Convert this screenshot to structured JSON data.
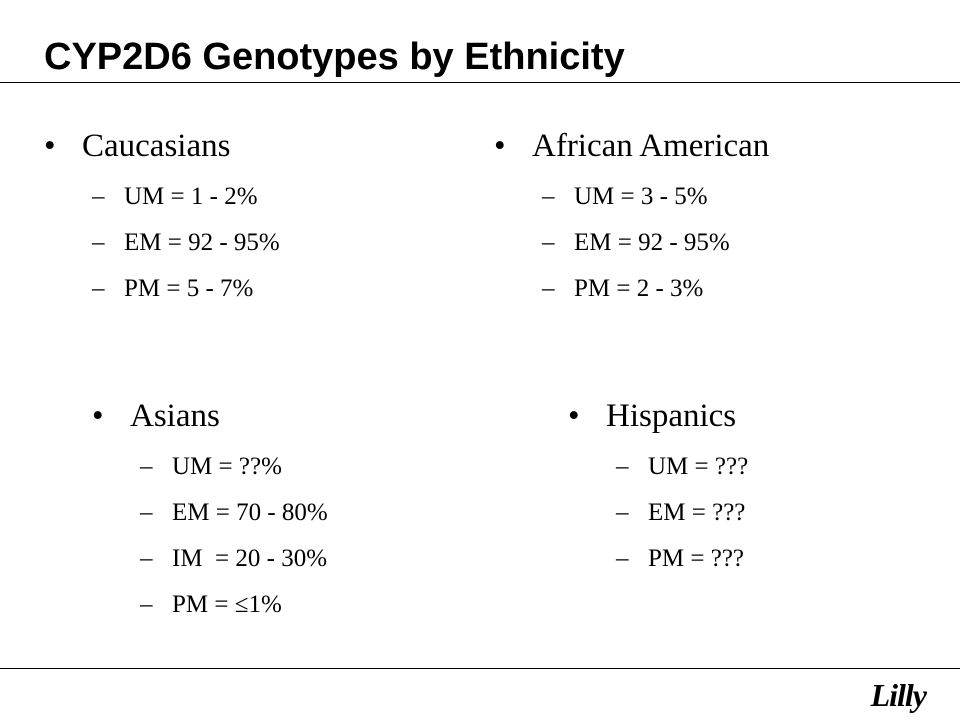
{
  "title": "CYP2D6 Genotypes by Ethnicity",
  "groups": [
    {
      "heading": "Caucasians",
      "items": [
        "UM = 1 - 2%",
        "EM = 92 - 95%",
        "PM = 5 - 7%"
      ]
    },
    {
      "heading": "African American",
      "items": [
        "UM = 3 - 5%",
        "EM = 92 - 95%",
        "PM = 2 - 3%"
      ]
    },
    {
      "heading": "Asians",
      "items": [
        "UM = ??%",
        "EM = 70 - 80%",
        "IM  = 20 - 30%",
        "PM = ≤1%"
      ]
    },
    {
      "heading": "Hispanics",
      "items": [
        "UM = ???",
        "EM = ???",
        "PM = ???"
      ]
    }
  ],
  "bullet_symbol": "•",
  "dash_symbol": "–",
  "logo_text": "Lilly"
}
